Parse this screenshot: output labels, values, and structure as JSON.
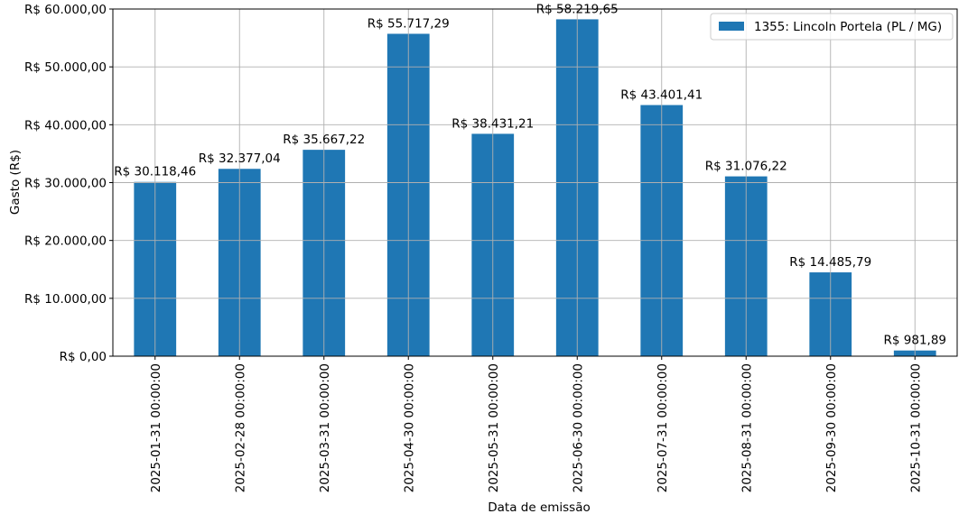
{
  "chart_data": {
    "type": "bar",
    "categories": [
      "2025-01-31 00:00:00",
      "2025-02-28 00:00:00",
      "2025-03-31 00:00:00",
      "2025-04-30 00:00:00",
      "2025-05-31 00:00:00",
      "2025-06-30 00:00:00",
      "2025-07-31 00:00:00",
      "2025-08-31 00:00:00",
      "2025-09-30 00:00:00",
      "2025-10-31 00:00:00"
    ],
    "series": [
      {
        "name": "1355: Lincoln Portela (PL / MG)",
        "color": "#1f77b4",
        "values": [
          30118.46,
          32377.04,
          35667.22,
          55717.29,
          38431.21,
          58219.65,
          43401.41,
          31076.22,
          14485.79,
          981.89
        ]
      }
    ],
    "data_labels": [
      "R$ 30.118,46",
      "R$ 32.377,04",
      "R$ 35.667,22",
      "R$ 55.717,29",
      "R$ 38.431,21",
      "R$ 58.219,65",
      "R$ 43.401,41",
      "R$ 31.076,22",
      "R$ 14.485,79",
      "R$ 981,89"
    ],
    "xlabel": "Data de emissão",
    "ylabel": "Gasto (R$)",
    "ylim": [
      0,
      60000
    ],
    "yticks": [
      0,
      10000,
      20000,
      30000,
      40000,
      50000,
      60000
    ],
    "ytick_labels": [
      "R$ 0,00",
      "R$ 10.000,00",
      "R$ 20.000,00",
      "R$ 30.000,00",
      "R$ 40.000,00",
      "R$ 50.000,00",
      "R$ 60.000,00"
    ],
    "grid": true,
    "legend_position": "top-right"
  }
}
